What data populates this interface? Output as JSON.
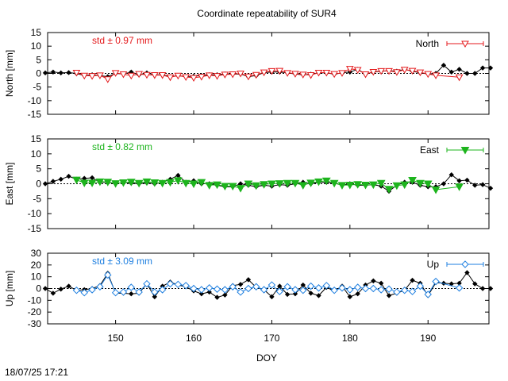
{
  "title": "Coordinate repeatability of SUR4",
  "xlabel": "DOY",
  "timestamp": "18/07/25 17:21",
  "x_tick_labels": [
    "150",
    "160",
    "170",
    "180",
    "190"
  ],
  "colors": {
    "reference": "#000000",
    "grid_zero": "#000000"
  },
  "chart_data": [
    {
      "type": "line",
      "panel": "north",
      "ylabel": "North [mm]",
      "xlim": [
        141.3,
        197.8
      ],
      "ylim": [
        -15,
        15
      ],
      "y_ticks": [
        15,
        10,
        5,
        0,
        -5,
        -10,
        -15
      ],
      "y_tick_labels": [
        "15",
        "10",
        "5",
        "0",
        "-5",
        "-10",
        "-15"
      ],
      "grid": "dashed zero line",
      "legend": "top-right",
      "annotation": "std ± 0.97 mm",
      "series": [
        {
          "name": "North",
          "color": "#e41a1c",
          "marker": "triangle-down-open",
          "x": [
            145,
            146,
            147,
            148,
            149,
            150,
            151,
            152,
            153,
            154,
            155,
            156,
            157,
            158,
            159,
            160,
            161,
            162,
            163,
            164,
            165,
            166,
            167,
            168,
            169,
            170,
            171,
            172,
            173,
            174,
            175,
            176,
            177,
            178,
            179,
            180,
            181,
            182,
            183,
            184,
            185,
            186,
            187,
            188,
            189,
            190,
            191,
            194
          ],
          "y": [
            0.3,
            -0.8,
            -0.9,
            -0.7,
            -2.1,
            0.2,
            -0.3,
            -0.8,
            -0.2,
            -0.5,
            -0.6,
            -0.6,
            -1.4,
            -0.8,
            -1.3,
            -1.6,
            -1.2,
            -0.7,
            -0.9,
            -0.4,
            -0.3,
            0.0,
            -1.1,
            -0.5,
            0.4,
            0.9,
            1.0,
            0.2,
            -0.1,
            -0.4,
            -0.6,
            0.3,
            0.3,
            -0.2,
            0.2,
            1.7,
            1.3,
            -0.3,
            0.6,
            0.9,
            0.9,
            0.5,
            1.4,
            1.0,
            0.4,
            -0.2,
            -0.7,
            -1.4
          ]
        },
        {
          "name": "",
          "color": "#000000",
          "marker": "diamond",
          "x": [
            141,
            142,
            143,
            144,
            145,
            146,
            147,
            148,
            149,
            150,
            151,
            152,
            153,
            154,
            155,
            156,
            157,
            158,
            159,
            160,
            161,
            162,
            163,
            164,
            165,
            166,
            167,
            168,
            169,
            170,
            171,
            172,
            173,
            174,
            175,
            176,
            177,
            178,
            179,
            180,
            181,
            182,
            183,
            184,
            185,
            186,
            187,
            188,
            189,
            190,
            191,
            192,
            193,
            194,
            195,
            196,
            197,
            198
          ],
          "y": [
            0.2,
            0.5,
            0.2,
            0.3,
            0.0,
            -0.8,
            -0.5,
            -0.8,
            -1.2,
            0.0,
            -0.2,
            0.5,
            -0.5,
            0.2,
            -0.5,
            -0.5,
            -1.2,
            -0.8,
            -1.2,
            -1.0,
            -0.8,
            -0.5,
            -0.5,
            -0.2,
            -0.3,
            -0.2,
            -1.2,
            -0.8,
            0.3,
            0.5,
            0.5,
            0.2,
            -0.2,
            -0.5,
            -0.3,
            0.2,
            0.2,
            -0.3,
            0.2,
            0.5,
            1.5,
            -0.3,
            0.5,
            0.8,
            1.0,
            0.8,
            1.5,
            0.8,
            0.2,
            -0.2,
            0.0,
            3.0,
            0.5,
            1.5,
            0.0,
            0.0,
            2.0,
            2.0
          ]
        }
      ]
    },
    {
      "type": "line",
      "panel": "east",
      "ylabel": "East [mm]",
      "xlim": [
        141.3,
        197.8
      ],
      "ylim": [
        -15,
        15
      ],
      "y_ticks": [
        15,
        10,
        5,
        0,
        -5,
        -10,
        -15
      ],
      "y_tick_labels": [
        "15",
        "10",
        "5",
        "0",
        "-5",
        "-10",
        "-15"
      ],
      "grid": "dashed zero line",
      "legend": "top-right",
      "annotation": "std ± 0.82 mm",
      "series": [
        {
          "name": "East",
          "color": "#1db41d",
          "marker": "triangle-down-filled",
          "x": [
            145,
            146,
            147,
            148,
            149,
            150,
            151,
            152,
            153,
            154,
            155,
            156,
            157,
            158,
            159,
            160,
            161,
            162,
            163,
            164,
            165,
            166,
            167,
            168,
            169,
            170,
            171,
            172,
            173,
            174,
            175,
            176,
            177,
            178,
            179,
            180,
            181,
            182,
            183,
            184,
            185,
            186,
            187,
            188,
            189,
            190,
            191,
            194
          ],
          "y": [
            1.3,
            0.3,
            0.3,
            0.7,
            0.6,
            0.1,
            0.4,
            0.6,
            0.2,
            0.7,
            0.4,
            0.2,
            0.5,
            1.1,
            0.2,
            0.0,
            0.5,
            -0.5,
            -0.3,
            -0.8,
            -0.8,
            -1.5,
            0.0,
            -0.6,
            -0.2,
            0.0,
            0.1,
            0.2,
            0.2,
            -0.5,
            0.3,
            0.7,
            1.0,
            0.2,
            -0.5,
            -0.4,
            -0.2,
            -0.4,
            -0.3,
            0.2,
            -1.8,
            -0.6,
            -0.3,
            1.2,
            0.2,
            0.0,
            -2.0,
            -1.0
          ]
        },
        {
          "name": "",
          "color": "#000000",
          "marker": "diamond",
          "x": [
            141,
            142,
            143,
            144,
            145,
            146,
            147,
            148,
            149,
            150,
            151,
            152,
            153,
            154,
            155,
            156,
            157,
            158,
            159,
            160,
            161,
            162,
            163,
            164,
            165,
            166,
            167,
            168,
            169,
            170,
            171,
            172,
            173,
            174,
            175,
            176,
            177,
            178,
            179,
            180,
            181,
            182,
            183,
            184,
            185,
            186,
            187,
            188,
            189,
            190,
            191,
            192,
            193,
            194,
            195,
            196,
            197,
            198
          ],
          "y": [
            0.0,
            0.8,
            1.5,
            2.5,
            1.5,
            1.8,
            2.0,
            0.5,
            0.5,
            0.0,
            0.5,
            0.2,
            0.0,
            0.3,
            0.0,
            0.5,
            1.5,
            2.8,
            0.5,
            1.0,
            0.0,
            0.0,
            -0.5,
            -1.0,
            -1.0,
            0.0,
            -0.5,
            -1.0,
            -0.5,
            -0.8,
            -0.3,
            -0.5,
            0.0,
            0.5,
            0.0,
            0.5,
            0.5,
            0.2,
            -0.5,
            0.0,
            -0.5,
            -0.5,
            -0.3,
            -0.8,
            -2.5,
            -0.5,
            0.5,
            0.5,
            -0.5,
            -1.0,
            -1.0,
            0.0,
            3.0,
            1.0,
            1.2,
            -0.5,
            -0.3,
            -1.5
          ]
        }
      ]
    },
    {
      "type": "line",
      "panel": "up",
      "ylabel": "Up [mm]",
      "xlim": [
        141.3,
        197.8
      ],
      "ylim": [
        -30,
        30
      ],
      "y_ticks": [
        30,
        20,
        10,
        0,
        -10,
        -20,
        -30
      ],
      "y_tick_labels": [
        "30",
        "20",
        "10",
        "0",
        "-10",
        "-20",
        "-30"
      ],
      "grid": "dashed zero line",
      "legend": "top-right",
      "annotation": "std ± 3.09 mm",
      "series": [
        {
          "name": "Up",
          "color": "#1e7fe0",
          "marker": "diamond-open",
          "x": [
            145,
            146,
            147,
            148,
            149,
            150,
            151,
            152,
            153,
            154,
            155,
            156,
            157,
            158,
            159,
            160,
            161,
            162,
            163,
            164,
            165,
            166,
            167,
            168,
            169,
            170,
            171,
            172,
            173,
            174,
            175,
            176,
            177,
            178,
            179,
            180,
            181,
            182,
            183,
            184,
            185,
            186,
            187,
            188,
            189,
            190,
            191,
            194
          ],
          "y": [
            -1.5,
            -3.5,
            -1.0,
            1.5,
            11.5,
            -3.5,
            -3.0,
            1.0,
            -3.0,
            4.0,
            -3.0,
            -1.0,
            4.0,
            3.5,
            2.5,
            0.0,
            -1.0,
            0.5,
            -0.5,
            -1.0,
            1.5,
            -3.0,
            0.0,
            1.5,
            -1.0,
            3.0,
            -2.5,
            1.5,
            -1.0,
            -1.5,
            2.0,
            0.5,
            2.5,
            -1.5,
            0.5,
            -1.0,
            1.0,
            0.0,
            0.0,
            -1.0,
            -0.5,
            -3.0,
            -1.5,
            -2.5,
            2.0,
            -5.0,
            6.0,
            0.5
          ]
        },
        {
          "name": "",
          "color": "#000000",
          "marker": "diamond",
          "x": [
            141,
            142,
            143,
            144,
            145,
            146,
            147,
            148,
            149,
            150,
            151,
            152,
            153,
            154,
            155,
            156,
            157,
            158,
            159,
            160,
            161,
            162,
            163,
            164,
            165,
            166,
            167,
            168,
            169,
            170,
            171,
            172,
            173,
            174,
            175,
            176,
            177,
            178,
            179,
            180,
            181,
            182,
            183,
            184,
            185,
            186,
            187,
            188,
            189,
            190,
            191,
            192,
            193,
            194,
            195,
            196,
            197,
            198
          ],
          "y": [
            0.0,
            -4.0,
            -0.5,
            2.0,
            -1.5,
            -1.0,
            0.0,
            2.5,
            13.0,
            -4.0,
            -4.0,
            -4.5,
            -4.0,
            4.0,
            -7.0,
            2.0,
            5.5,
            3.0,
            1.5,
            -2.0,
            -4.5,
            -3.0,
            -7.5,
            -5.5,
            2.5,
            3.5,
            7.5,
            1.0,
            -1.0,
            -7.0,
            2.0,
            -5.0,
            -4.5,
            3.0,
            -4.0,
            -6.0,
            1.0,
            -2.0,
            2.0,
            -7.0,
            -4.5,
            3.0,
            6.5,
            4.5,
            -6.0,
            -4.0,
            -1.5,
            7.0,
            4.5,
            -6.0,
            5.0,
            4.5,
            4.0,
            4.5,
            13.5,
            4.0,
            0.0,
            0.0
          ]
        }
      ]
    }
  ]
}
